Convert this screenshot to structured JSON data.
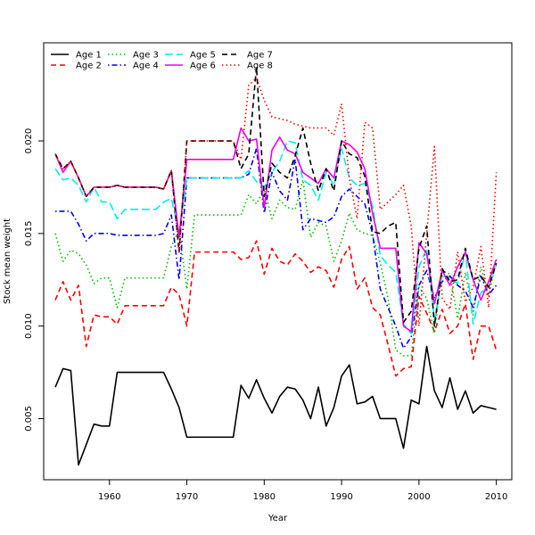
{
  "chart_data": {
    "type": "line",
    "title": "",
    "xlabel": "Year",
    "ylabel": "Stock mean weight",
    "xlim": [
      1951.5,
      2012
    ],
    "ylim": [
      0.0017,
      0.0253
    ],
    "xticks": [
      1960,
      1970,
      1980,
      1990,
      2000,
      2010
    ],
    "yticks": [
      0.005,
      0.01,
      0.015,
      0.02
    ],
    "ytick_labels": [
      "0.005",
      "0.010",
      "0.015",
      "0.020"
    ],
    "grid": false,
    "legend": {
      "position": "top-left",
      "columns": 4
    },
    "x": [
      1953,
      1954,
      1955,
      1956,
      1957,
      1958,
      1959,
      1960,
      1961,
      1962,
      1963,
      1964,
      1965,
      1966,
      1967,
      1968,
      1969,
      1970,
      1971,
      1972,
      1973,
      1974,
      1975,
      1976,
      1977,
      1978,
      1979,
      1980,
      1981,
      1982,
      1983,
      1984,
      1985,
      1986,
      1987,
      1988,
      1989,
      1990,
      1991,
      1992,
      1993,
      1994,
      1995,
      1996,
      1997,
      1998,
      1999,
      2000,
      2001,
      2002,
      2003,
      2004,
      2005,
      2006,
      2007,
      2008,
      2009,
      2010
    ],
    "series": [
      {
        "name": "Age 1",
        "color": "#000000",
        "dash": "solid",
        "values": [
          0.0067,
          0.0077,
          0.0076,
          0.0025,
          0.0036,
          0.0047,
          0.0046,
          0.0046,
          0.0075,
          0.0075,
          0.0075,
          0.0075,
          0.0075,
          0.0075,
          0.0075,
          0.0066,
          0.0056,
          0.004,
          0.004,
          0.004,
          0.004,
          0.004,
          0.004,
          0.004,
          0.0068,
          0.0061,
          0.0071,
          0.0061,
          0.0053,
          0.0062,
          0.0067,
          0.0066,
          0.006,
          0.005,
          0.0067,
          0.0046,
          0.0056,
          0.0073,
          0.0079,
          0.0058,
          0.0059,
          0.0062,
          0.005,
          0.005,
          0.005,
          0.0034,
          0.006,
          0.0058,
          0.0089,
          0.0065,
          0.0056,
          0.0072,
          0.0055,
          0.0065,
          0.0053,
          0.0057,
          0.0056,
          0.0055
        ]
      },
      {
        "name": "Age 2",
        "color": "#ff0000",
        "dash": "dashed",
        "values": [
          0.0114,
          0.0124,
          0.0114,
          0.0122,
          0.0089,
          0.0106,
          0.0105,
          0.0105,
          0.0101,
          0.0111,
          0.0111,
          0.0111,
          0.0111,
          0.0111,
          0.0111,
          0.0121,
          0.0117,
          0.01,
          0.014,
          0.014,
          0.014,
          0.014,
          0.014,
          0.014,
          0.0136,
          0.0137,
          0.0146,
          0.0128,
          0.0142,
          0.0135,
          0.0133,
          0.0139,
          0.0135,
          0.0129,
          0.0132,
          0.013,
          0.0121,
          0.0136,
          0.0143,
          0.012,
          0.0126,
          0.011,
          0.0106,
          0.009,
          0.0073,
          0.0077,
          0.0078,
          0.0116,
          0.0107,
          0.0097,
          0.0109,
          0.0096,
          0.01,
          0.0112,
          0.0082,
          0.01,
          0.01,
          0.0087
        ]
      },
      {
        "name": "Age 3",
        "color": "#00bb00",
        "dash": "dotted",
        "values": [
          0.015,
          0.0135,
          0.0141,
          0.0139,
          0.0133,
          0.0123,
          0.0126,
          0.0126,
          0.011,
          0.0126,
          0.0126,
          0.0126,
          0.0126,
          0.0126,
          0.0126,
          0.0143,
          0.0152,
          0.012,
          0.016,
          0.016,
          0.016,
          0.016,
          0.016,
          0.016,
          0.016,
          0.0171,
          0.0166,
          0.0174,
          0.0158,
          0.0168,
          0.0164,
          0.0163,
          0.0179,
          0.0148,
          0.0156,
          0.0154,
          0.0135,
          0.0146,
          0.0161,
          0.0152,
          0.015,
          0.0149,
          0.0134,
          0.0115,
          0.0087,
          0.0084,
          0.0084,
          0.0121,
          0.0115,
          0.0096,
          0.013,
          0.0128,
          0.0104,
          0.0129,
          0.0106,
          0.0132,
          0.0116,
          0.0136
        ]
      },
      {
        "name": "Age 4",
        "color": "#0000ee",
        "dash": "dashdot",
        "values": [
          0.0162,
          0.0162,
          0.0162,
          0.0155,
          0.0146,
          0.015,
          0.015,
          0.015,
          0.0149,
          0.0149,
          0.0149,
          0.0149,
          0.0149,
          0.0149,
          0.015,
          0.016,
          0.0125,
          0.018,
          0.018,
          0.018,
          0.018,
          0.018,
          0.018,
          0.018,
          0.018,
          0.0182,
          0.0196,
          0.0161,
          0.0183,
          0.0173,
          0.0168,
          0.019,
          0.0152,
          0.0158,
          0.0157,
          0.0156,
          0.0159,
          0.017,
          0.0174,
          0.017,
          0.0166,
          0.015,
          0.012,
          0.011,
          0.01,
          0.0088,
          0.0094,
          0.0122,
          0.013,
          0.0115,
          0.0124,
          0.0127,
          0.0122,
          0.0119,
          0.011,
          0.0127,
          0.0117,
          0.0122
        ]
      },
      {
        "name": "Age 5",
        "color": "#00eeee",
        "dash": "longdash",
        "values": [
          0.0185,
          0.0179,
          0.018,
          0.0176,
          0.0167,
          0.0175,
          0.0167,
          0.0167,
          0.0158,
          0.0163,
          0.0163,
          0.0163,
          0.0163,
          0.0163,
          0.0167,
          0.0169,
          0.015,
          0.018,
          0.018,
          0.018,
          0.018,
          0.018,
          0.018,
          0.018,
          0.018,
          0.0184,
          0.0178,
          0.0175,
          0.0183,
          0.0189,
          0.02,
          0.0199,
          0.0179,
          0.0176,
          0.0168,
          0.0183,
          0.0176,
          0.0196,
          0.018,
          0.0176,
          0.0177,
          0.0165,
          0.0138,
          0.0133,
          0.0129,
          0.0101,
          0.0096,
          0.0132,
          0.0142,
          0.0103,
          0.0127,
          0.0126,
          0.0123,
          0.014,
          0.0101,
          0.0118,
          0.0121,
          0.0133
        ]
      },
      {
        "name": "Age 6",
        "color": "#ee00ee",
        "dash": "solid",
        "values": [
          0.0193,
          0.0183,
          0.0189,
          0.018,
          0.017,
          0.0175,
          0.0175,
          0.0175,
          0.0176,
          0.0175,
          0.0175,
          0.0175,
          0.0175,
          0.0175,
          0.0174,
          0.0184,
          0.0148,
          0.019,
          0.019,
          0.019,
          0.019,
          0.019,
          0.019,
          0.019,
          0.0207,
          0.02,
          0.0201,
          0.0164,
          0.0195,
          0.0202,
          0.0195,
          0.0193,
          0.0183,
          0.018,
          0.0177,
          0.0185,
          0.018,
          0.02,
          0.0198,
          0.0194,
          0.0185,
          0.0161,
          0.0142,
          0.0142,
          0.0142,
          0.01,
          0.0097,
          0.0145,
          0.0139,
          0.0112,
          0.013,
          0.0122,
          0.0132,
          0.014,
          0.0125,
          0.0114,
          0.0124,
          0.0136
        ]
      },
      {
        "name": "Age 7",
        "color": "#000000",
        "dash": "dashed",
        "values": [
          0.0193,
          0.0185,
          0.0189,
          0.018,
          0.017,
          0.0175,
          0.0175,
          0.0175,
          0.0176,
          0.0175,
          0.0175,
          0.0175,
          0.0175,
          0.0175,
          0.0174,
          0.0184,
          0.014,
          0.02,
          0.02,
          0.02,
          0.02,
          0.02,
          0.02,
          0.02,
          0.0185,
          0.0193,
          0.024,
          0.017,
          0.0188,
          0.0183,
          0.018,
          0.0192,
          0.0207,
          0.0188,
          0.0173,
          0.0185,
          0.0173,
          0.02,
          0.0193,
          0.0191,
          0.0181,
          0.0151,
          0.015,
          0.0154,
          0.0156,
          0.0102,
          0.0108,
          0.0142,
          0.0154,
          0.01,
          0.0131,
          0.0124,
          0.0125,
          0.0142,
          0.0125,
          0.0127,
          0.0121,
          0.0134
        ]
      },
      {
        "name": "Age 8",
        "color": "#ff0000",
        "dash": "dotted",
        "values": [
          0.0193,
          0.0185,
          0.0189,
          0.018,
          0.017,
          0.0175,
          0.0175,
          0.0175,
          0.0176,
          0.0175,
          0.0175,
          0.0175,
          0.0175,
          0.0175,
          0.0174,
          0.0184,
          0.014,
          0.02,
          0.02,
          0.02,
          0.02,
          0.02,
          0.02,
          0.02,
          0.019,
          0.023,
          0.0234,
          0.0222,
          0.0213,
          0.0212,
          0.0211,
          0.0209,
          0.0208,
          0.0207,
          0.0207,
          0.0207,
          0.0203,
          0.022,
          0.018,
          0.0158,
          0.021,
          0.0207,
          0.0163,
          0.0167,
          0.0171,
          0.0176,
          0.0154,
          0.01,
          0.015,
          0.0197,
          0.0115,
          0.0109,
          0.014,
          0.0113,
          0.0121,
          0.0143,
          0.011,
          0.0183
        ]
      }
    ]
  }
}
